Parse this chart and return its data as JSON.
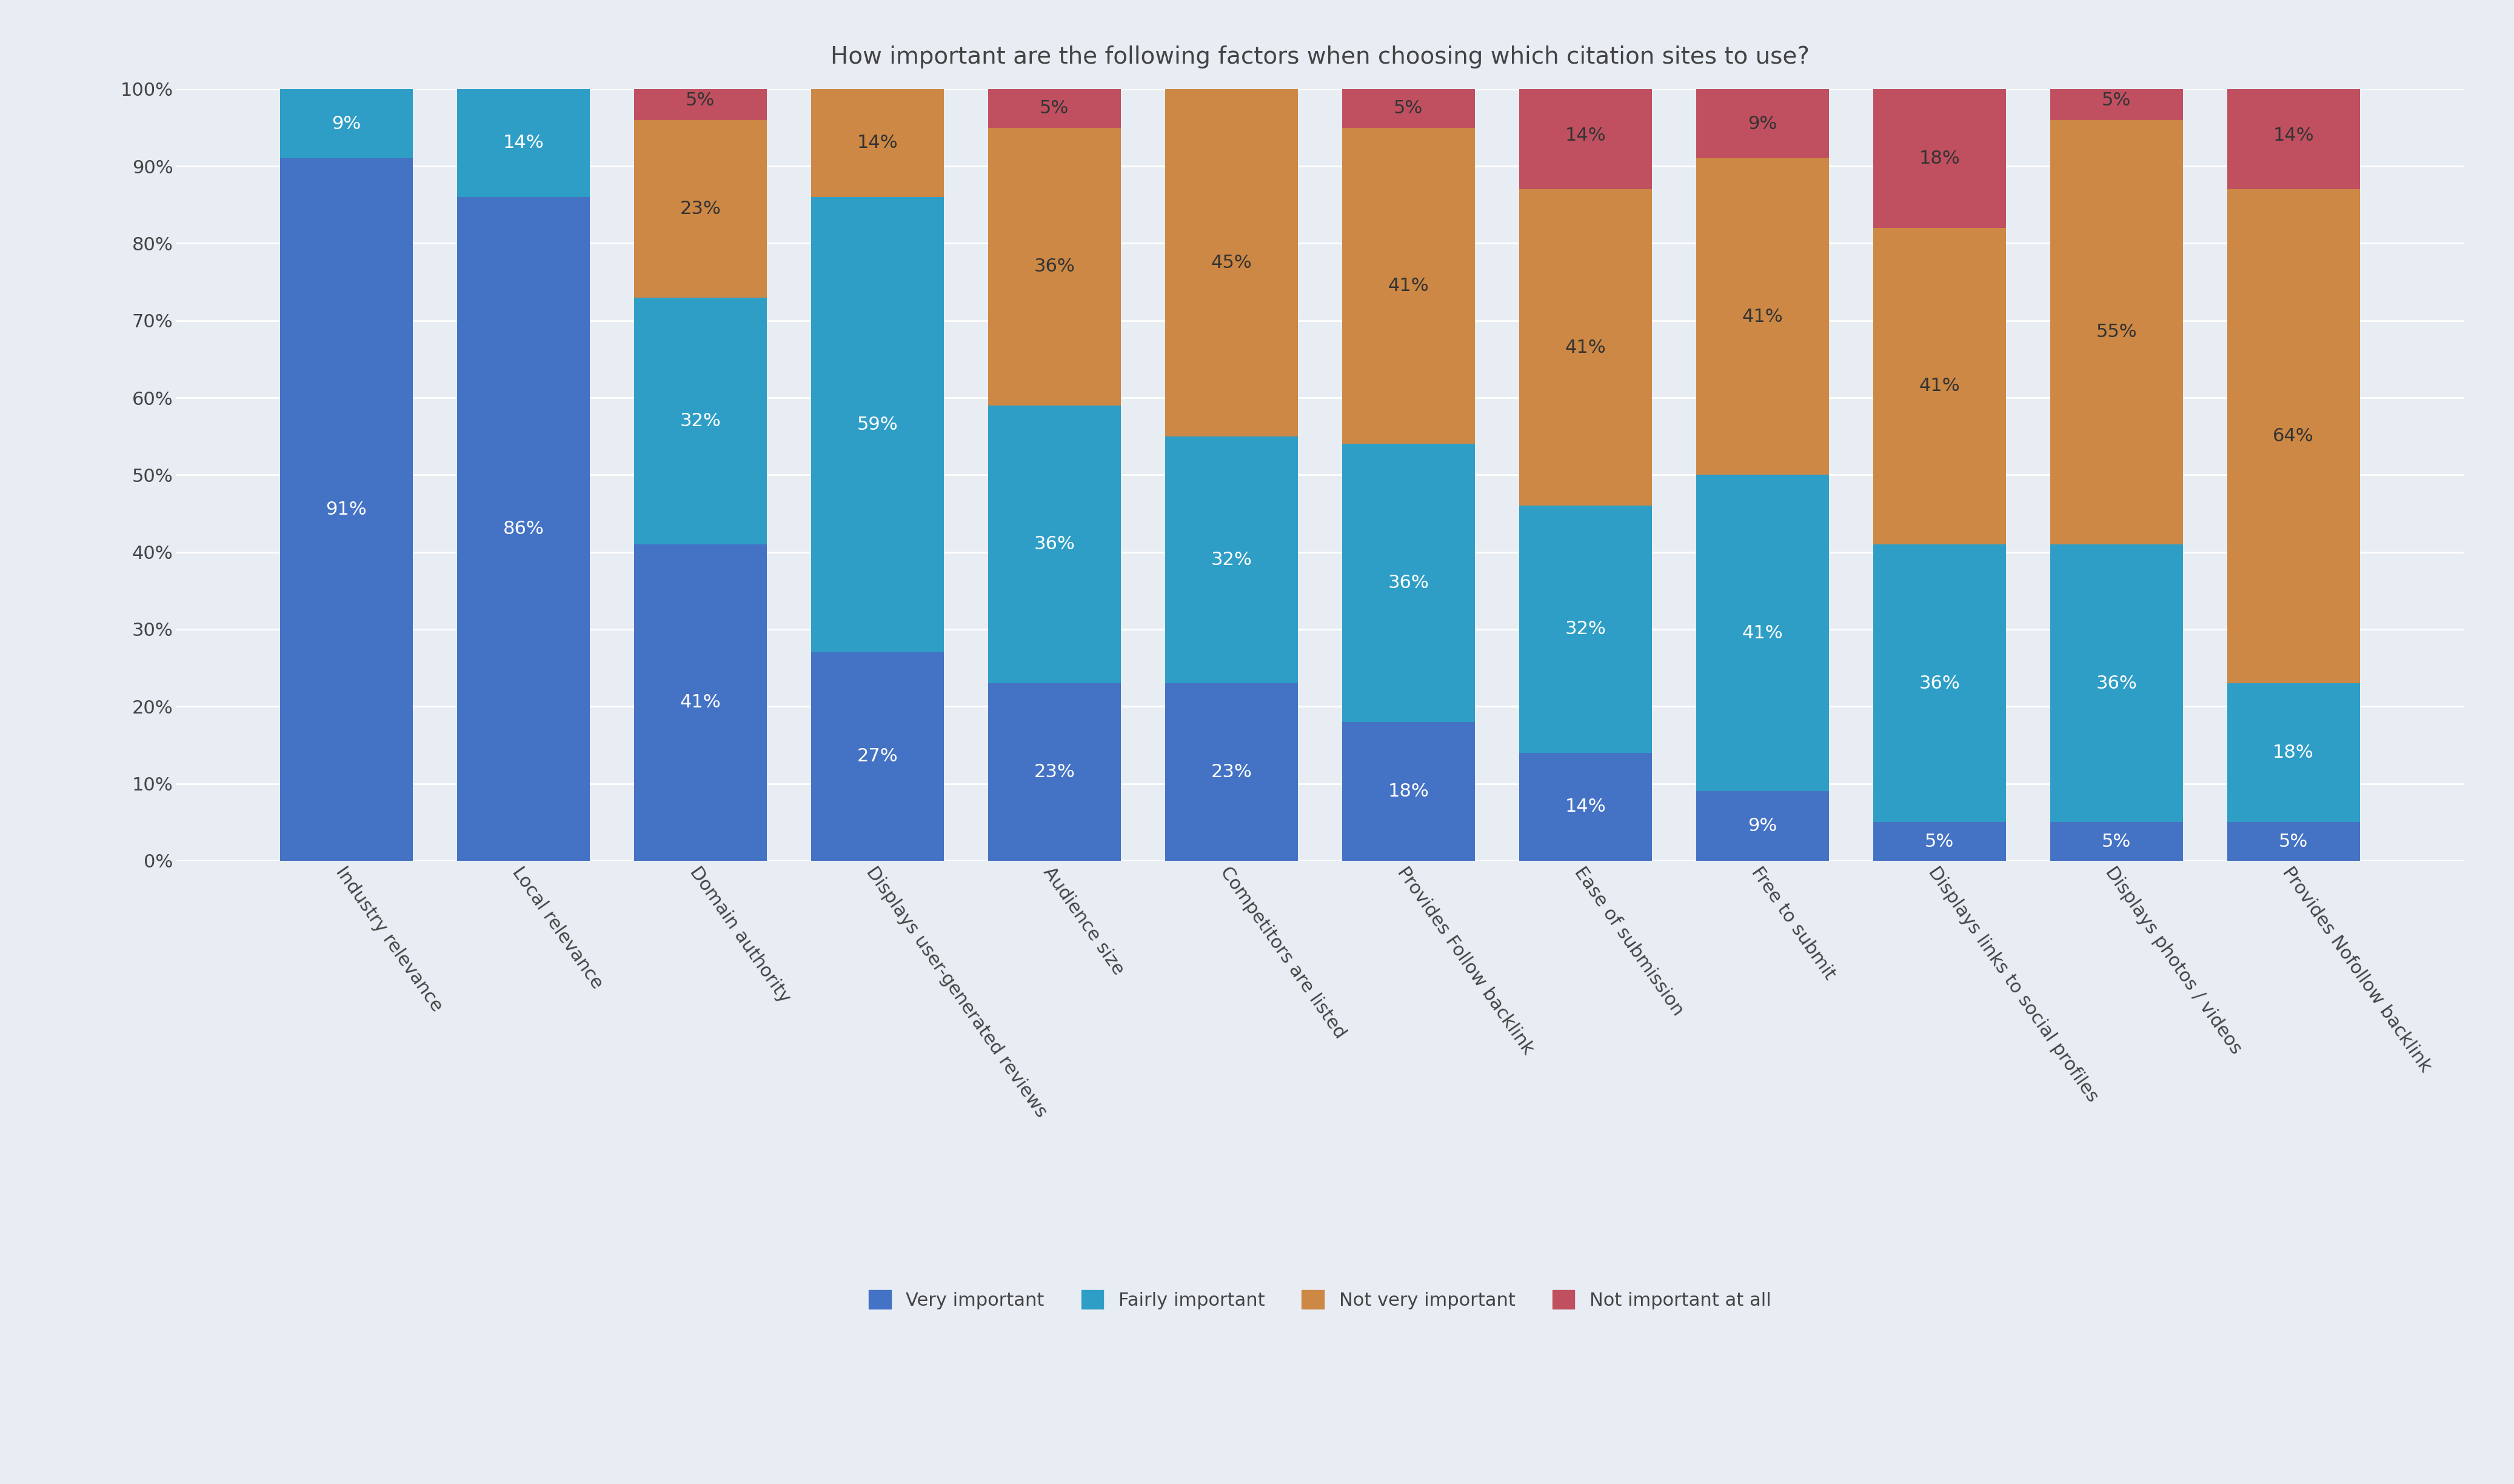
{
  "title": "How important are the following factors when choosing which citation sites to use?",
  "categories": [
    "Industry relevance",
    "Local relevance",
    "Domain authority",
    "Displays user-generated reviews",
    "Audience size",
    "Competitors are listed",
    "Provides Follow backlink",
    "Ease of submission",
    "Free to submit",
    "Displays links to social profiles",
    "Displays photos / videos",
    "Provides Nofollow backlink"
  ],
  "series": {
    "Very important": [
      91,
      86,
      41,
      27,
      23,
      23,
      18,
      14,
      9,
      5,
      5,
      5
    ],
    "Fairly important": [
      9,
      14,
      32,
      59,
      36,
      32,
      36,
      32,
      41,
      36,
      36,
      18
    ],
    "Not very important": [
      0,
      0,
      23,
      14,
      36,
      45,
      41,
      41,
      41,
      41,
      55,
      64
    ],
    "Not important at all": [
      0,
      0,
      5,
      0,
      5,
      0,
      5,
      14,
      9,
      18,
      5,
      14
    ]
  },
  "colors": {
    "Very important": "#4472C4",
    "Fairly important": "#2E9EC6",
    "Not very important": "#CC8844",
    "Not important at all": "#C05060"
  },
  "legend_labels": [
    "Very important",
    "Fairly important",
    "Not very important",
    "Not important at all"
  ],
  "background_color": "#E8EDF4",
  "title_fontsize": 28,
  "label_fontsize": 22,
  "tick_fontsize": 22,
  "legend_fontsize": 22
}
